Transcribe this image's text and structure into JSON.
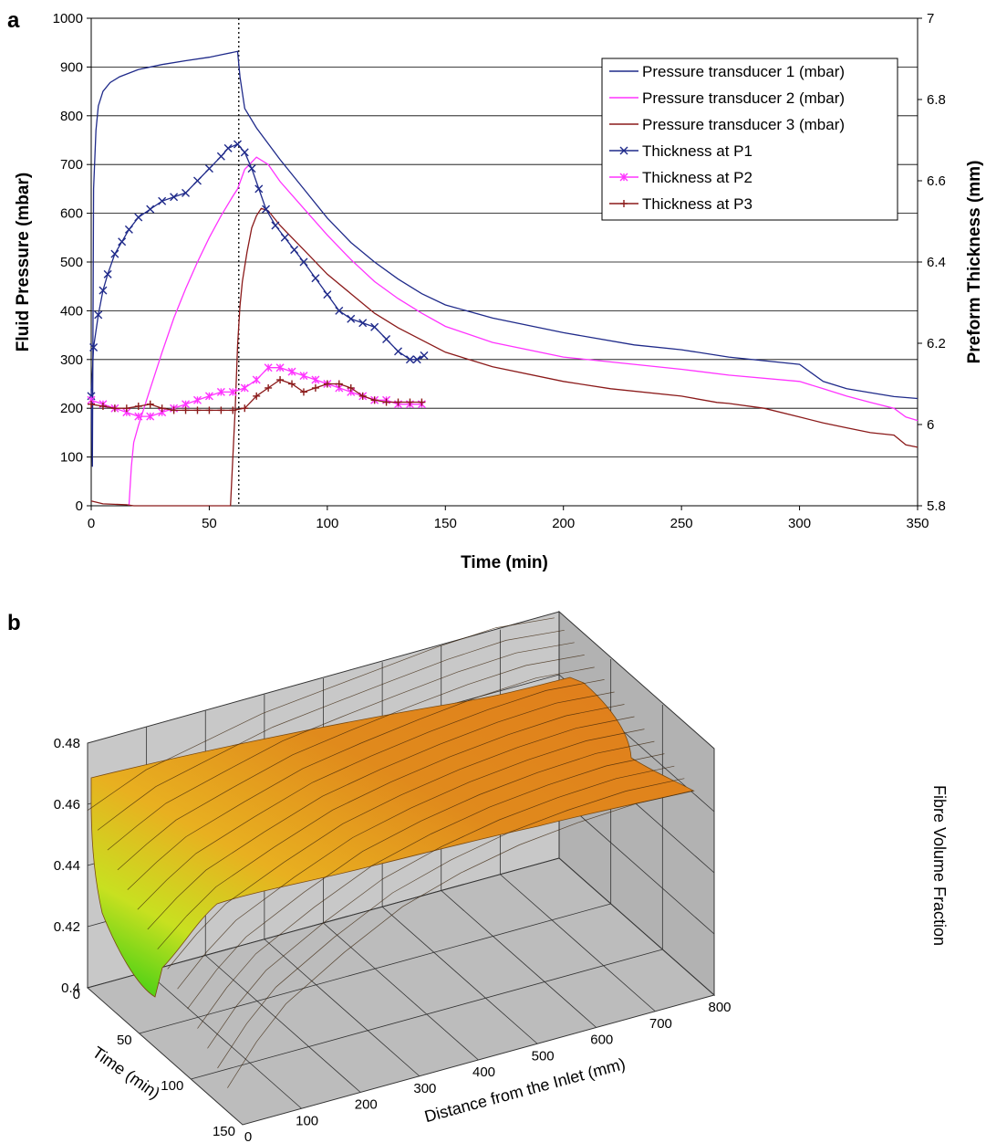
{
  "chart_data": [
    {
      "panel_label": "a",
      "type": "line",
      "xlabel": "Time (min)",
      "ylabel": "Fluid Pressure (mbar)",
      "y2label": "Preform Thickness (mm)",
      "xlim": [
        0,
        350
      ],
      "ylim": [
        0,
        1000
      ],
      "y2lim": [
        5.8,
        7
      ],
      "x_ticks": [
        "0",
        "50",
        "100",
        "150",
        "200",
        "250",
        "300",
        "350"
      ],
      "y_ticks": [
        "0",
        "100",
        "200",
        "300",
        "400",
        "500",
        "600",
        "700",
        "800",
        "900",
        "1000"
      ],
      "y2_ticks": [
        "5.8",
        "6",
        "6.2",
        "6.4",
        "6.6",
        "6.8",
        "7"
      ],
      "grid": "horizontal",
      "legend_position": "top-right",
      "vertical_marker_x": 62.5,
      "colors": {
        "p1": "#1f2a8a",
        "p2": "#ff33ff",
        "p3": "#8b1a1a"
      },
      "series": [
        {
          "name": "Pressure transducer 1 (mbar)",
          "axis": "left",
          "marker": "none",
          "color": "#1f2a8a",
          "points": [
            [
              0,
              240
            ],
            [
              0.5,
              80
            ],
            [
              1,
              650
            ],
            [
              2,
              770
            ],
            [
              3,
              820
            ],
            [
              5,
              850
            ],
            [
              8,
              868
            ],
            [
              12,
              880
            ],
            [
              20,
              895
            ],
            [
              30,
              905
            ],
            [
              40,
              913
            ],
            [
              50,
              920
            ],
            [
              55,
              925
            ],
            [
              62,
              932
            ],
            [
              63,
              880
            ],
            [
              65,
              815
            ],
            [
              70,
              775
            ],
            [
              80,
              710
            ],
            [
              90,
              650
            ],
            [
              100,
              590
            ],
            [
              110,
              540
            ],
            [
              120,
              500
            ],
            [
              130,
              465
            ],
            [
              140,
              435
            ],
            [
              150,
              412
            ],
            [
              170,
              385
            ],
            [
              200,
              355
            ],
            [
              230,
              330
            ],
            [
              250,
              320
            ],
            [
              270,
              305
            ],
            [
              300,
              290
            ],
            [
              310,
              255
            ],
            [
              320,
              240
            ],
            [
              330,
              232
            ],
            [
              340,
              224
            ],
            [
              350,
              220
            ]
          ]
        },
        {
          "name": "Pressure transducer 2 (mbar)",
          "axis": "left",
          "marker": "none",
          "color": "#ff33ff",
          "points": [
            [
              16,
              0
            ],
            [
              17,
              80
            ],
            [
              18,
              130
            ],
            [
              20,
              165
            ],
            [
              25,
              240
            ],
            [
              30,
              315
            ],
            [
              35,
              385
            ],
            [
              40,
              445
            ],
            [
              45,
              500
            ],
            [
              50,
              550
            ],
            [
              55,
              595
            ],
            [
              60,
              635
            ],
            [
              62,
              650
            ],
            [
              65,
              690
            ],
            [
              70,
              715
            ],
            [
              75,
              700
            ],
            [
              80,
              665
            ],
            [
              90,
              610
            ],
            [
              100,
              555
            ],
            [
              110,
              505
            ],
            [
              120,
              460
            ],
            [
              130,
              425
            ],
            [
              140,
              395
            ],
            [
              150,
              368
            ],
            [
              170,
              335
            ],
            [
              200,
              305
            ],
            [
              230,
              290
            ],
            [
              250,
              280
            ],
            [
              270,
              268
            ],
            [
              300,
              255
            ],
            [
              310,
              240
            ],
            [
              320,
              225
            ],
            [
              330,
              212
            ],
            [
              340,
              200
            ],
            [
              345,
              182
            ],
            [
              350,
              175
            ]
          ]
        },
        {
          "name": "Pressure transducer 3 (mbar)",
          "axis": "left",
          "marker": "none",
          "color": "#8b1a1a",
          "points": [
            [
              0,
              10
            ],
            [
              5,
              4
            ],
            [
              15,
              2
            ],
            [
              18,
              0
            ],
            [
              59,
              0
            ],
            [
              60,
              100
            ],
            [
              61,
              200
            ],
            [
              62,
              330
            ],
            [
              63,
              410
            ],
            [
              64,
              460
            ],
            [
              66,
              520
            ],
            [
              68,
              570
            ],
            [
              70,
              595
            ],
            [
              72,
              610
            ],
            [
              75,
              605
            ],
            [
              80,
              575
            ],
            [
              90,
              525
            ],
            [
              100,
              475
            ],
            [
              110,
              435
            ],
            [
              120,
              395
            ],
            [
              130,
              365
            ],
            [
              140,
              340
            ],
            [
              150,
              315
            ],
            [
              170,
              285
            ],
            [
              200,
              255
            ],
            [
              220,
              240
            ],
            [
              250,
              225
            ],
            [
              265,
              212
            ],
            [
              270,
              210
            ],
            [
              285,
              200
            ],
            [
              300,
              182
            ],
            [
              310,
              170
            ],
            [
              320,
              160
            ],
            [
              330,
              150
            ],
            [
              340,
              145
            ],
            [
              345,
              125
            ],
            [
              350,
              120
            ]
          ]
        },
        {
          "name": "Thickness at P1",
          "axis": "right",
          "marker": "x",
          "color": "#1f2a8a",
          "points": [
            [
              0,
              6.07
            ],
            [
              1,
              6.19
            ],
            [
              3,
              6.27
            ],
            [
              5,
              6.33
            ],
            [
              7,
              6.37
            ],
            [
              10,
              6.42
            ],
            [
              13,
              6.45
            ],
            [
              16,
              6.48
            ],
            [
              20,
              6.51
            ],
            [
              25,
              6.53
            ],
            [
              30,
              6.55
            ],
            [
              35,
              6.56
            ],
            [
              40,
              6.57
            ],
            [
              45,
              6.6
            ],
            [
              50,
              6.63
            ],
            [
              55,
              6.66
            ],
            [
              58,
              6.68
            ],
            [
              62,
              6.69
            ],
            [
              65,
              6.67
            ],
            [
              68,
              6.63
            ],
            [
              71,
              6.58
            ],
            [
              74,
              6.53
            ],
            [
              78,
              6.49
            ],
            [
              82,
              6.46
            ],
            [
              86,
              6.43
            ],
            [
              90,
              6.4
            ],
            [
              95,
              6.36
            ],
            [
              100,
              6.32
            ],
            [
              105,
              6.28
            ],
            [
              110,
              6.26
            ],
            [
              115,
              6.25
            ],
            [
              120,
              6.24
            ],
            [
              125,
              6.21
            ],
            [
              130,
              6.18
            ],
            [
              135,
              6.16
            ],
            [
              138,
              6.16
            ],
            [
              141,
              6.17
            ]
          ]
        },
        {
          "name": "Thickness at P2",
          "axis": "right",
          "marker": "asterisk",
          "color": "#ff33ff",
          "points": [
            [
              0,
              6.06
            ],
            [
              5,
              6.05
            ],
            [
              10,
              6.04
            ],
            [
              15,
              6.03
            ],
            [
              20,
              6.02
            ],
            [
              25,
              6.02
            ],
            [
              30,
              6.03
            ],
            [
              35,
              6.04
            ],
            [
              40,
              6.05
            ],
            [
              45,
              6.06
            ],
            [
              50,
              6.07
            ],
            [
              55,
              6.08
            ],
            [
              60,
              6.08
            ],
            [
              65,
              6.09
            ],
            [
              70,
              6.11
            ],
            [
              75,
              6.14
            ],
            [
              80,
              6.14
            ],
            [
              85,
              6.13
            ],
            [
              90,
              6.12
            ],
            [
              95,
              6.11
            ],
            [
              100,
              6.1
            ],
            [
              105,
              6.09
            ],
            [
              110,
              6.08
            ],
            [
              115,
              6.07
            ],
            [
              120,
              6.06
            ],
            [
              125,
              6.06
            ],
            [
              130,
              6.05
            ],
            [
              135,
              6.05
            ],
            [
              140,
              6.05
            ]
          ]
        },
        {
          "name": "Thickness at P3",
          "axis": "right",
          "marker": "plus",
          "color": "#8b1a1a",
          "points": [
            [
              0,
              6.05
            ],
            [
              5,
              6.045
            ],
            [
              10,
              6.04
            ],
            [
              15,
              6.04
            ],
            [
              20,
              6.045
            ],
            [
              25,
              6.05
            ],
            [
              30,
              6.04
            ],
            [
              35,
              6.035
            ],
            [
              40,
              6.035
            ],
            [
              45,
              6.035
            ],
            [
              50,
              6.035
            ],
            [
              55,
              6.035
            ],
            [
              60,
              6.035
            ],
            [
              65,
              6.04
            ],
            [
              70,
              6.07
            ],
            [
              75,
              6.09
            ],
            [
              80,
              6.11
            ],
            [
              85,
              6.1
            ],
            [
              90,
              6.08
            ],
            [
              95,
              6.09
            ],
            [
              100,
              6.1
            ],
            [
              105,
              6.1
            ],
            [
              110,
              6.09
            ],
            [
              115,
              6.07
            ],
            [
              120,
              6.06
            ],
            [
              125,
              6.055
            ],
            [
              130,
              6.055
            ],
            [
              135,
              6.055
            ],
            [
              140,
              6.055
            ]
          ]
        }
      ]
    },
    {
      "panel_label": "b",
      "type": "surface3d",
      "zlabel": "Fibre Volume Fraction",
      "ylabel": "Time (min)",
      "xlabel": "Distance from the Inlet (mm)",
      "xlim": [
        0,
        800
      ],
      "ylim": [
        0,
        150
      ],
      "zlim": [
        0.4,
        0.48
      ],
      "x_ticks": [
        "0",
        "100",
        "200",
        "300",
        "400",
        "500",
        "600",
        "700",
        "800"
      ],
      "y_ticks": [
        "0",
        "50",
        "100",
        "150"
      ],
      "z_ticks": [
        "0.4",
        "0.42",
        "0.44",
        "0.46",
        "0.48"
      ],
      "colors": {
        "low": "#22cc11",
        "mid": "#e8e020",
        "high": "#e07c1c"
      },
      "surface_profile": {
        "x": [
          0,
          50,
          100,
          200,
          300,
          400,
          500,
          600,
          700,
          800
        ],
        "z_at_time_0": [
          0.458,
          0.462,
          0.466,
          0.47,
          0.474,
          0.476,
          0.478,
          0.48,
          0.481,
          0.479
        ],
        "z_at_time_max": [
          0.405,
          0.418,
          0.428,
          0.44,
          0.45,
          0.456,
          0.46,
          0.462,
          0.463,
          0.462
        ]
      }
    }
  ]
}
